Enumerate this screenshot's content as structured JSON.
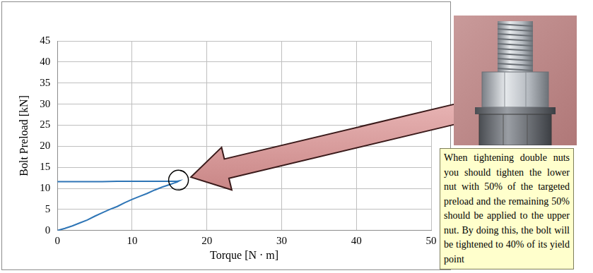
{
  "chart_data": {
    "type": "line",
    "x_label": "Torque [N · m]",
    "y_label": "Bolt Preload [kN]",
    "x": [
      0,
      1,
      2,
      3,
      4,
      5,
      6,
      7,
      8,
      9,
      10,
      11,
      12,
      13,
      14,
      15,
      15.5,
      16,
      16.3,
      16,
      14,
      12,
      10,
      8,
      6,
      4,
      2,
      0
    ],
    "values": [
      0,
      0.5,
      1.1,
      1.8,
      2.5,
      3.4,
      4.2,
      5.0,
      5.7,
      6.6,
      7.4,
      8.1,
      8.8,
      9.6,
      10.3,
      10.9,
      11.2,
      11.5,
      11.8,
      11.7,
      11.7,
      11.7,
      11.7,
      11.7,
      11.6,
      11.6,
      11.6,
      11.6
    ],
    "color": "#2e75b6",
    "xlim": [
      0,
      50
    ],
    "ylim": [
      0,
      45
    ],
    "xticks": [
      0,
      10,
      20,
      30,
      40,
      50
    ],
    "yticks": [
      0,
      5,
      10,
      15,
      20,
      25,
      30,
      35,
      40,
      45
    ],
    "grid": true,
    "marker": "none",
    "line_style": "solid",
    "annotations": [
      {
        "text": "When tightening double nuts you should tighten the lower nut with 50% of the targeted preload and the remaining 50% should be applied to the upper nut. By doing this, the bolt will be tightened to 40% of its yield point",
        "x": 16.3,
        "y": 11.8
      }
    ]
  }
}
